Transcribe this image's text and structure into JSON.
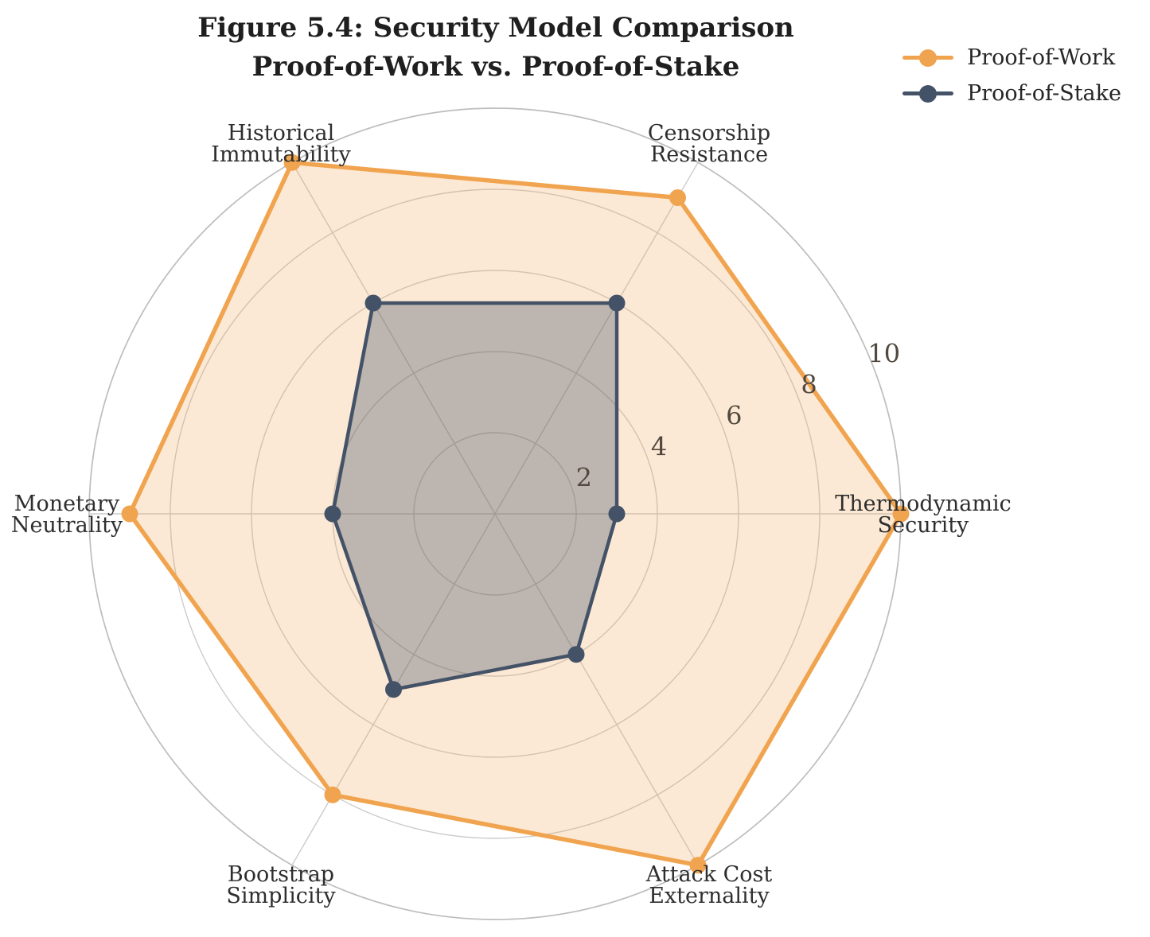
{
  "figure_title": {
    "line1": "Figure 5.4: Security Model Comparison",
    "line2": "Proof-of-Work vs. Proof-of-Stake"
  },
  "legend": {
    "position": "top-right",
    "items": [
      {
        "label": "Proof-of-Work",
        "color": "#F1A44F"
      },
      {
        "label": "Proof-of-Stake",
        "color": "#445268"
      }
    ]
  },
  "chart_data": {
    "type": "radar",
    "title": "Figure 5.4: Security Model Comparison — Proof-of-Work vs. Proof-of-Stake",
    "categories": [
      "Thermodynamic Security",
      "Censorship Resistance",
      "Historical Immutability",
      "Monetary Neutrality",
      "Bootstrap Simplicity",
      "Attack Cost Externality"
    ],
    "category_label_lines": [
      [
        "Thermodynamic",
        "Security"
      ],
      [
        "Censorship",
        "Resistance"
      ],
      [
        "Historical",
        "Immutability"
      ],
      [
        "Monetary",
        "Neutrality"
      ],
      [
        "Bootstrap",
        "Simplicity"
      ],
      [
        "Attack Cost",
        "Externality"
      ]
    ],
    "axis_angles_deg": [
      0,
      60,
      120,
      180,
      240,
      300
    ],
    "series": [
      {
        "name": "Proof-of-Work",
        "color": "#F1A44F",
        "fill_opacity": 0.24,
        "line_width": 5.5,
        "marker_radius": 10.5,
        "values": [
          10,
          9,
          10,
          9,
          8,
          10
        ]
      },
      {
        "name": "Proof-of-Stake",
        "color": "#445268",
        "fill_opacity": 0.34,
        "line_width": 4.5,
        "marker_radius": 10.5,
        "values": [
          3,
          6,
          6,
          4,
          5,
          4
        ]
      }
    ],
    "radial_ticks": [
      2,
      4,
      6,
      8,
      10
    ],
    "r_axis_range": [
      0,
      10
    ],
    "tick_label_angle_deg": 22.5,
    "grid": true,
    "grid_shape": "circle",
    "legend_position": "top-right",
    "colors": {
      "grid_line": "#cccccc",
      "outer_ring": "#bdbdbd",
      "tick_label": "#51493e",
      "axis_label": "#2e2e2e"
    }
  }
}
